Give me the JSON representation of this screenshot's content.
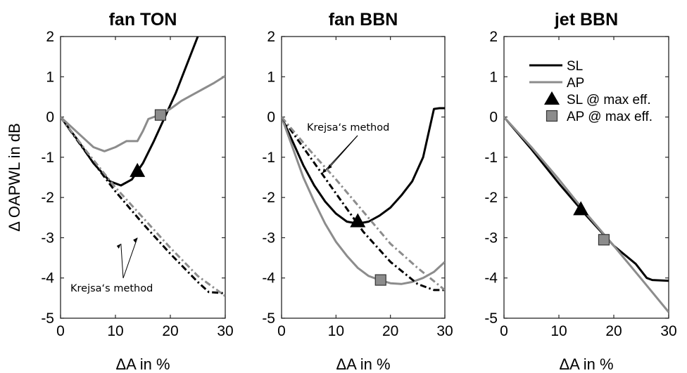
{
  "chart_data": [
    {
      "type": "line",
      "title": "fan TON",
      "xlabel": "ΔA in %",
      "ylabel": "Δ OAPWL in dB",
      "xlim": [
        0,
        30
      ],
      "ylim": [
        -5,
        2
      ],
      "xticks": [
        "0",
        "10",
        "20",
        "30"
      ],
      "yticks": [
        "2",
        "1",
        "0",
        "-1",
        "-2",
        "-3",
        "-4",
        "-5"
      ],
      "series": [
        {
          "name": "SL",
          "style": "solid",
          "color": "#000000",
          "x": [
            0,
            3,
            6,
            9,
            11,
            13,
            15,
            17,
            19,
            21,
            23,
            25
          ],
          "y": [
            0,
            -0.55,
            -1.15,
            -1.6,
            -1.7,
            -1.55,
            -1.15,
            -0.6,
            0.0,
            0.6,
            1.3,
            2.0
          ]
        },
        {
          "name": "AP",
          "style": "solid",
          "color": "#8c8c8c",
          "x": [
            0,
            2,
            4,
            6,
            8,
            10,
            12,
            14,
            15,
            16,
            18,
            20,
            22,
            24,
            26,
            28,
            30
          ],
          "y": [
            0,
            -0.25,
            -0.5,
            -0.75,
            -0.85,
            -0.75,
            -0.6,
            -0.6,
            -0.35,
            -0.05,
            0.05,
            0.2,
            0.4,
            0.55,
            0.7,
            0.85,
            1.02
          ]
        },
        {
          "name": "",
          "style": "dashdot",
          "color": "#000000",
          "x": [
            0,
            5,
            10,
            15,
            20,
            25,
            27,
            30
          ],
          "y": [
            0,
            -0.95,
            -1.85,
            -2.65,
            -3.4,
            -4.1,
            -4.35,
            -4.38
          ]
        },
        {
          "name": "",
          "style": "dashdot",
          "color": "#8c8c8c",
          "x": [
            0,
            5,
            10,
            15,
            20,
            25,
            30
          ],
          "y": [
            0,
            -0.9,
            -1.75,
            -2.5,
            -3.25,
            -3.95,
            -4.45
          ]
        }
      ],
      "markers": [
        {
          "name": "SL @ max eff.",
          "shape": "triangle",
          "x": 14,
          "y": -1.35
        },
        {
          "name": "AP @ max eff.",
          "shape": "square",
          "x": 18.2,
          "y": 0.05
        }
      ],
      "annotation": "Krejsa‘s method"
    },
    {
      "type": "line",
      "title": "fan BBN",
      "xlabel": "ΔA in %",
      "xlim": [
        0,
        30
      ],
      "ylim": [
        -5,
        2
      ],
      "xticks": [
        "0",
        "10",
        "20",
        "30"
      ],
      "yticks": [
        "2",
        "1",
        "0",
        "-1",
        "-2",
        "-3",
        "-4",
        "-5"
      ],
      "series": [
        {
          "name": "SL",
          "style": "solid",
          "color": "#000000",
          "x": [
            0,
            2,
            4,
            6,
            8,
            10,
            12,
            14,
            16,
            18,
            20,
            22,
            24,
            26,
            27,
            28,
            29,
            30
          ],
          "y": [
            0,
            -0.6,
            -1.2,
            -1.7,
            -2.1,
            -2.4,
            -2.6,
            -2.65,
            -2.6,
            -2.45,
            -2.25,
            -1.95,
            -1.6,
            -1.0,
            -0.4,
            0.2,
            0.22,
            0.22
          ]
        },
        {
          "name": "AP",
          "style": "solid",
          "color": "#8c8c8c",
          "x": [
            0,
            2,
            4,
            6,
            8,
            10,
            12,
            14,
            16,
            18,
            20,
            22,
            24,
            26,
            28,
            30
          ],
          "y": [
            0,
            -0.75,
            -1.5,
            -2.1,
            -2.65,
            -3.1,
            -3.45,
            -3.75,
            -3.95,
            -4.05,
            -4.13,
            -4.15,
            -4.1,
            -4.0,
            -3.85,
            -3.6
          ]
        },
        {
          "name": "",
          "style": "dashdot",
          "color": "#000000",
          "x": [
            0,
            5,
            10,
            15,
            20,
            25,
            28,
            30
          ],
          "y": [
            0,
            -0.95,
            -1.9,
            -2.85,
            -3.6,
            -4.15,
            -4.3,
            -4.3
          ]
        },
        {
          "name": "",
          "style": "dashdot",
          "color": "#8c8c8c",
          "x": [
            0,
            5,
            10,
            15,
            20,
            25,
            30
          ],
          "y": [
            0,
            -0.8,
            -1.55,
            -2.35,
            -3.15,
            -3.75,
            -4.3
          ]
        }
      ],
      "markers": [
        {
          "name": "SL @ max eff.",
          "shape": "triangle",
          "x": 14,
          "y": -2.6
        },
        {
          "name": "AP @ max eff.",
          "shape": "square",
          "x": 18.2,
          "y": -4.05
        }
      ],
      "annotation": "Krejsa‘s method"
    },
    {
      "type": "line",
      "title": "jet BBN",
      "xlabel": "ΔA in %",
      "xlim": [
        0,
        30
      ],
      "ylim": [
        -5,
        2
      ],
      "xticks": [
        "0",
        "10",
        "20",
        "30"
      ],
      "yticks": [
        "2",
        "1",
        "0",
        "-1",
        "-2",
        "-3",
        "-4",
        "-5"
      ],
      "series": [
        {
          "name": "SL",
          "style": "solid",
          "color": "#000000",
          "x": [
            0,
            5,
            10,
            15,
            20,
            24,
            26,
            27,
            30
          ],
          "y": [
            0,
            -0.8,
            -1.65,
            -2.45,
            -3.2,
            -3.65,
            -4.0,
            -4.05,
            -4.07
          ]
        },
        {
          "name": "AP",
          "style": "solid",
          "color": "#8c8c8c",
          "x": [
            0,
            5,
            10,
            15,
            20,
            25,
            30
          ],
          "y": [
            0,
            -0.75,
            -1.55,
            -2.4,
            -3.2,
            -4.02,
            -4.85
          ]
        }
      ],
      "markers": [
        {
          "name": "SL @ max eff.",
          "shape": "triangle",
          "x": 14,
          "y": -2.3
        },
        {
          "name": "AP @ max eff.",
          "shape": "square",
          "x": 18.2,
          "y": -3.05
        }
      ],
      "legend": {
        "position": "top-right",
        "entries": [
          "SL",
          "AP",
          "SL @ max eff.",
          "AP @ max eff."
        ]
      }
    }
  ]
}
